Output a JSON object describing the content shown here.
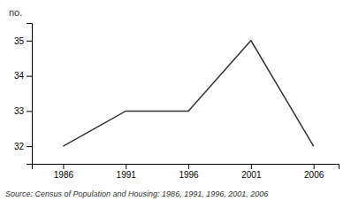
{
  "chart_data": {
    "type": "line",
    "ylabel": "no.",
    "source": "Source: Census of Population and Housing: 1986, 1991, 1996, 2001, 2006",
    "x": [
      1986,
      1991,
      1996,
      2001,
      2006
    ],
    "values": [
      32,
      33,
      33,
      35,
      32
    ],
    "color": "#333333",
    "xlim": [
      1983.5,
      2008
    ],
    "ylim": [
      31.5,
      35.5
    ],
    "xticks": [
      1986,
      1991,
      1996,
      2001,
      2006
    ],
    "yticks": [
      32,
      33,
      34,
      35
    ],
    "grid": false
  }
}
